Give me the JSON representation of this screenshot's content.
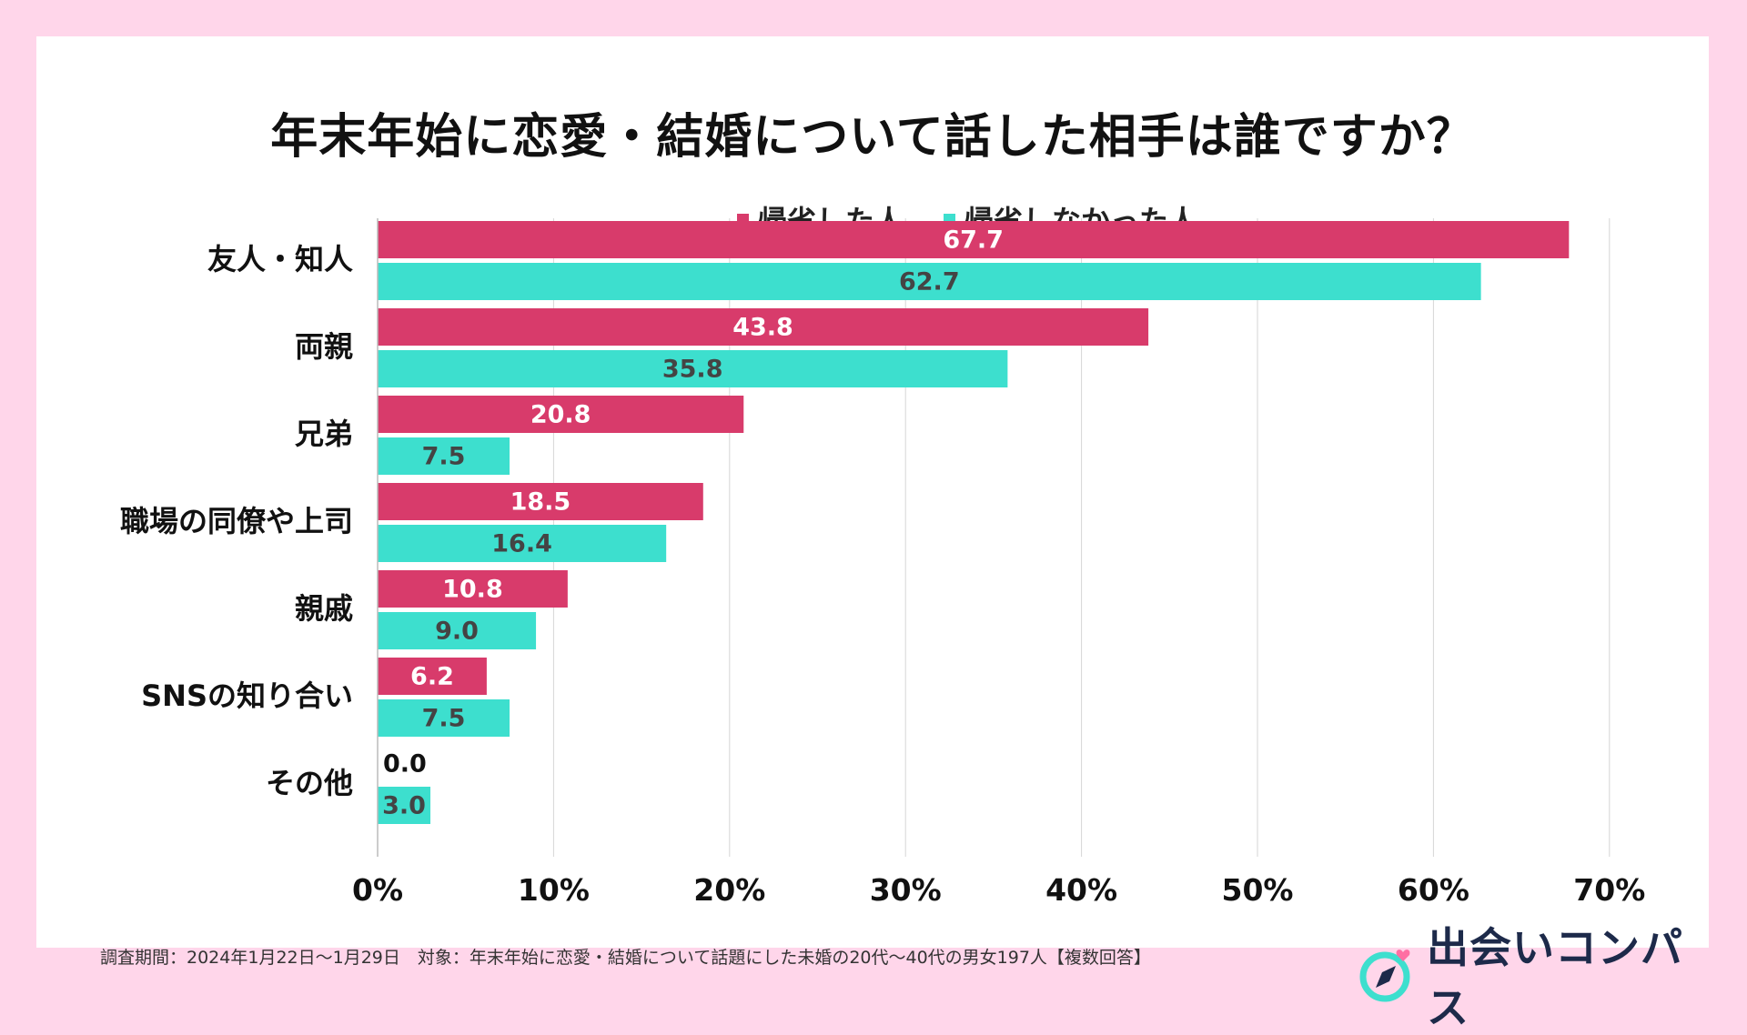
{
  "chart_data": {
    "type": "bar",
    "orientation": "horizontal",
    "title": "年末年始に恋愛・結婚について話した相手は誰ですか？",
    "categories": [
      "友人・知人",
      "両親",
      "兄弟",
      "職場の同僚や上司",
      "親戚",
      "SNSの知り合い",
      "その他"
    ],
    "series": [
      {
        "name": "帰省した人",
        "color": "#d83b6b",
        "values": [
          67.7,
          43.8,
          20.8,
          18.5,
          10.8,
          6.2,
          0.0
        ],
        "value_labels": [
          "67.7",
          "43.8",
          "20.8",
          "18.5",
          "10.8",
          "6.2",
          "0.0"
        ]
      },
      {
        "name": "帰省しなかった人",
        "color": "#3ddfce",
        "values": [
          62.7,
          35.8,
          7.5,
          16.4,
          9.0,
          7.5,
          3.0
        ],
        "value_labels": [
          "62.7",
          "35.8",
          "7.5",
          "16.4",
          "9.0",
          "7.5",
          "3.0"
        ]
      }
    ],
    "xlim": [
      0,
      70
    ],
    "xticks": [
      0,
      10,
      20,
      30,
      40,
      50,
      60,
      70
    ],
    "xtick_labels": [
      "0%",
      "10%",
      "20%",
      "30%",
      "40%",
      "50%",
      "60%",
      "70%"
    ],
    "xlabel": "",
    "ylabel": "",
    "grid": true,
    "legend_position": "top"
  },
  "footnote": "調査期間：2024年1月22日〜1月29日　対象：年末年始に恋愛・結婚について話題にした未婚の20代〜40代の男女197人【複数回答】",
  "brand": {
    "name": "出会いコンパス",
    "icon": "compass-heart-icon",
    "colors": {
      "ring": "#3ddfce",
      "heart": "#ff6fa3",
      "needle": "#1d2a4a"
    }
  },
  "colors": {
    "background": "#ffd6ea",
    "card": "#ffffff",
    "grid": "#d6d6d6",
    "label_dark": "#444444",
    "label_light": "#ffffff"
  }
}
